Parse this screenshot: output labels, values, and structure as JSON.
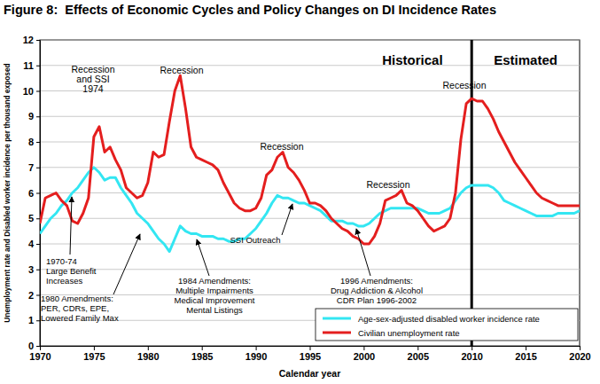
{
  "chart_data": {
    "type": "line",
    "title": "Figure 8:  Effects of Economic Cycles and Policy Changes on DI Incidence Rates",
    "x_label": "Calendar year",
    "y_label": "Unemployment rate and Disabled worker incidence per thousand exposed",
    "x": [
      1970,
      1970.5,
      1971,
      1971.5,
      1972,
      1972.5,
      1973,
      1973.5,
      1974,
      1974.5,
      1975,
      1975.5,
      1976,
      1976.5,
      1977,
      1977.5,
      1978,
      1978.5,
      1979,
      1979.5,
      1980,
      1980.5,
      1981,
      1981.5,
      1982,
      1982.5,
      1983,
      1983.5,
      1984,
      1984.5,
      1985,
      1985.5,
      1986,
      1986.5,
      1987,
      1987.5,
      1988,
      1988.5,
      1989,
      1989.5,
      1990,
      1990.5,
      1991,
      1991.5,
      1992,
      1992.5,
      1993,
      1993.5,
      1994,
      1994.5,
      1995,
      1995.5,
      1996,
      1996.5,
      1997,
      1997.5,
      1998,
      1998.5,
      1999,
      1999.5,
      2000,
      2000.5,
      2001,
      2001.5,
      2002,
      2002.5,
      2003,
      2003.5,
      2004,
      2004.5,
      2005,
      2005.5,
      2006,
      2006.5,
      2007,
      2007.5,
      2008,
      2008.5,
      2009,
      2009.5,
      2010,
      2010.5,
      2011,
      2011.5,
      2012,
      2012.5,
      2013,
      2013.5,
      2014,
      2014.5,
      2015,
      2015.5,
      2016,
      2016.5,
      2017,
      2017.5,
      2018,
      2018.5,
      2019,
      2019.5,
      2020
    ],
    "series": [
      {
        "name": "Age-sex-adjusted disabled worker incidence rate",
        "color": "#33e6f2",
        "line_style": "solid",
        "values": [
          4.4,
          4.7,
          5.0,
          5.2,
          5.5,
          5.7,
          6.0,
          6.2,
          6.5,
          6.8,
          7.0,
          6.8,
          6.5,
          6.6,
          6.6,
          6.2,
          5.9,
          5.6,
          5.2,
          5.0,
          4.8,
          4.5,
          4.2,
          4.0,
          3.7,
          4.2,
          4.7,
          4.5,
          4.4,
          4.4,
          4.3,
          4.3,
          4.3,
          4.2,
          4.2,
          4.1,
          4.1,
          4.2,
          4.2,
          4.4,
          4.6,
          4.9,
          5.2,
          5.6,
          5.9,
          5.8,
          5.8,
          5.7,
          5.6,
          5.6,
          5.5,
          5.4,
          5.3,
          5.1,
          4.9,
          4.9,
          4.9,
          4.8,
          4.8,
          4.7,
          4.7,
          4.8,
          5.0,
          5.2,
          5.3,
          5.4,
          5.4,
          5.4,
          5.4,
          5.4,
          5.4,
          5.3,
          5.2,
          5.2,
          5.2,
          5.3,
          5.4,
          5.7,
          6.0,
          6.2,
          6.3,
          6.3,
          6.3,
          6.3,
          6.2,
          6.0,
          5.7,
          5.6,
          5.5,
          5.4,
          5.3,
          5.2,
          5.1,
          5.1,
          5.1,
          5.1,
          5.2,
          5.2,
          5.2,
          5.2,
          5.3
        ]
      },
      {
        "name": "Civilian unemployment rate",
        "color": "#e41e1e",
        "line_style": "solid",
        "values": [
          4.8,
          5.8,
          5.9,
          6.0,
          5.7,
          5.5,
          4.9,
          4.8,
          5.2,
          5.8,
          8.2,
          8.6,
          7.6,
          7.8,
          7.3,
          6.9,
          6.2,
          6.0,
          5.8,
          5.9,
          6.4,
          7.6,
          7.4,
          7.5,
          8.8,
          10.0,
          10.6,
          9.3,
          7.8,
          7.4,
          7.3,
          7.2,
          7.1,
          6.9,
          6.4,
          6.0,
          5.6,
          5.4,
          5.3,
          5.3,
          5.4,
          5.8,
          6.7,
          6.9,
          7.4,
          7.6,
          7.0,
          6.8,
          6.5,
          6.1,
          5.6,
          5.6,
          5.5,
          5.3,
          5.0,
          4.8,
          4.6,
          4.5,
          4.3,
          4.2,
          4.0,
          4.0,
          4.3,
          4.8,
          5.7,
          5.8,
          5.9,
          6.1,
          5.6,
          5.5,
          5.3,
          5.0,
          4.7,
          4.5,
          4.6,
          4.7,
          5.0,
          6.0,
          8.1,
          9.5,
          9.7,
          9.6,
          9.6,
          9.3,
          8.9,
          8.4,
          8.0,
          7.6,
          7.2,
          6.9,
          6.6,
          6.3,
          6.0,
          5.8,
          5.7,
          5.6,
          5.5,
          5.5,
          5.5,
          5.5,
          5.5
        ]
      }
    ],
    "xlim": [
      1970,
      2020
    ],
    "xticks": [
      1970,
      1975,
      1980,
      1985,
      1990,
      1995,
      2000,
      2005,
      2010,
      2015,
      2020
    ],
    "ylim": [
      0,
      12
    ],
    "yticks": [
      0,
      1,
      2,
      3,
      4,
      5,
      6,
      7,
      8,
      9,
      10,
      11,
      12
    ],
    "grid": true,
    "legend": "bottom-right",
    "period_split": 2010,
    "period_labels": [
      "Historical",
      "Estimated"
    ],
    "annotations": [
      {
        "text": [
          "Recession",
          "and SSI",
          "1974"
        ]
      },
      {
        "text": [
          "Recession"
        ]
      },
      {
        "text": [
          "Recession"
        ]
      },
      {
        "text": [
          "Recession"
        ]
      },
      {
        "text": [
          "Recession"
        ]
      },
      {
        "text": [
          "1970-74",
          "Large Benefit",
          "Increases"
        ]
      },
      {
        "text": [
          "1980 Amendments:",
          "PER, CDRs, EPE,",
          "Lowered Family Max"
        ]
      },
      {
        "text": [
          "1984 Amendments:",
          "Multiple Impairments",
          "Medical Improvement",
          "Mental Listings"
        ]
      },
      {
        "text": [
          "SSI Outreach"
        ]
      },
      {
        "text": [
          "1996 Amendments:",
          "Drug Addiction & Alcohol",
          "CDR Plan 1996-2002"
        ]
      }
    ]
  }
}
